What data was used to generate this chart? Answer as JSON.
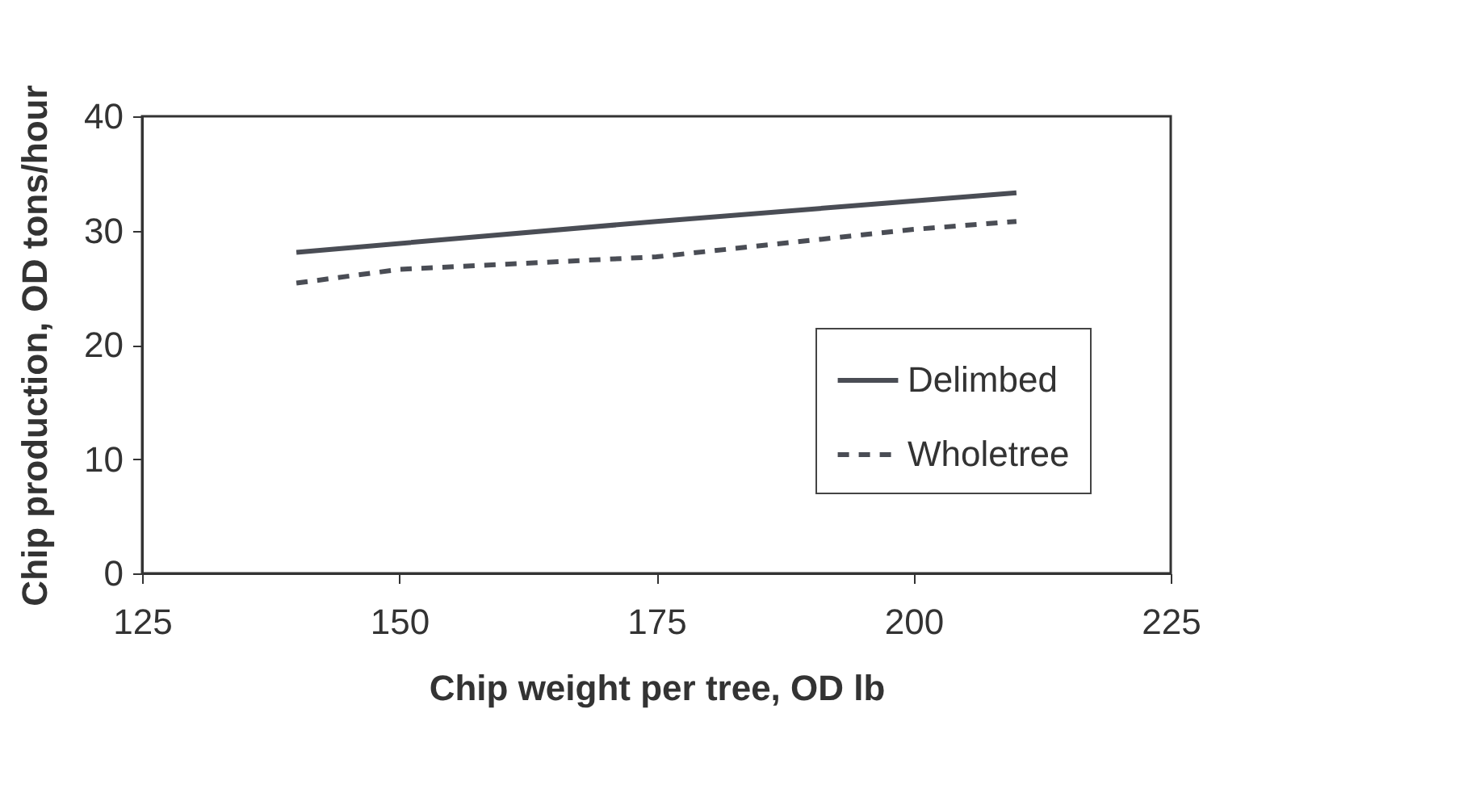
{
  "chart_data": {
    "type": "line",
    "xlabel": "Chip weight per tree, OD lb",
    "ylabel": "Chip production, OD tons/hour",
    "xlim": [
      125,
      225
    ],
    "xticks": [
      125,
      150,
      175,
      200,
      225
    ],
    "ylim": [
      0,
      40
    ],
    "yticks": [
      0,
      10,
      20,
      30,
      40
    ],
    "grid": false,
    "legend": "bottom right",
    "marker": "none",
    "series": [
      {
        "name": "Delimbed",
        "color": "#4a4d55",
        "line_style": "solid",
        "x": [
          140,
          175,
          210
        ],
        "values": [
          28.1,
          30.8,
          33.3
        ]
      },
      {
        "name": "Wholetree",
        "color": "#4a4d55",
        "line_style": "dashed",
        "x": [
          140,
          150,
          175,
          200,
          210
        ],
        "values": [
          25.4,
          26.6,
          27.7,
          30.1,
          30.8
        ]
      }
    ]
  }
}
